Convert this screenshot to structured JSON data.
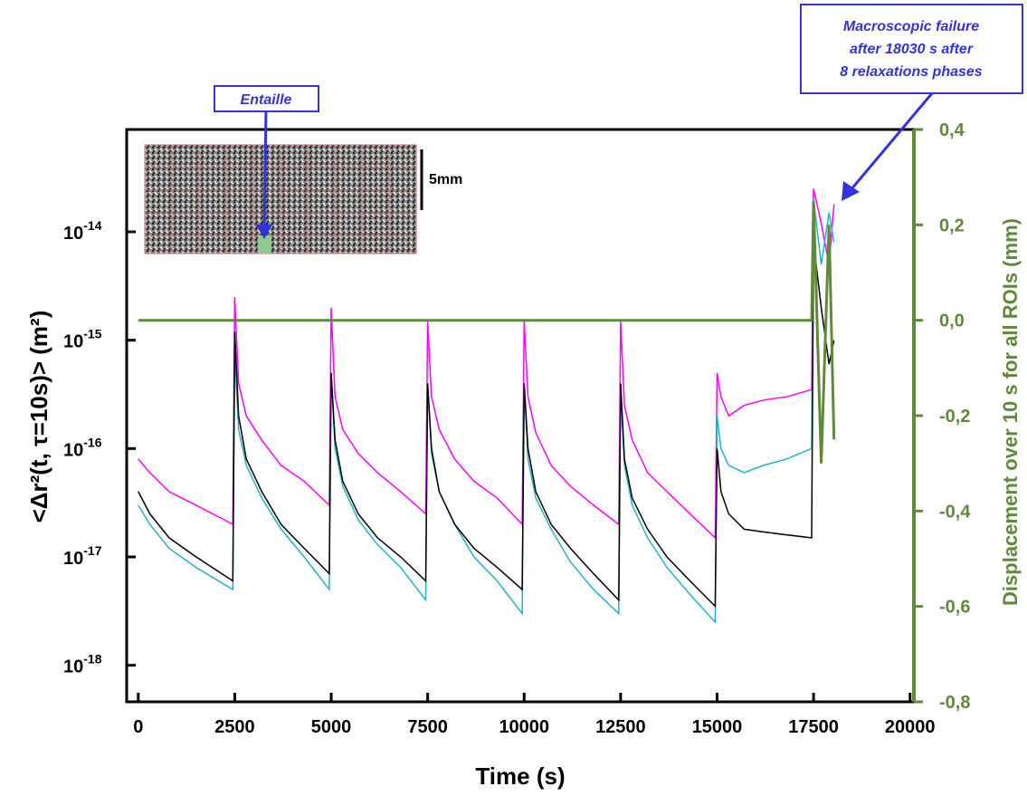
{
  "chart_data": {
    "type": "line",
    "x_label": "Time (s)",
    "y_label": "<Δr²(t,  τ=10s)> (m²)",
    "y2_label": "Displacement over 10 s for all ROIs (mm)",
    "annotations": [
      "Entaille",
      "5mm",
      "Macroscopic failure after 18030  s after 8 relaxations phases"
    ],
    "y_scale": "log",
    "xlim": [
      -300,
      20100
    ],
    "ylim": [
      4.6e-19,
      8.8e-14
    ],
    "y2lim": [
      -0.8,
      0.4
    ],
    "xticks": [
      0,
      2500,
      5000,
      7500,
      10000,
      12500,
      15000,
      17500,
      20000
    ],
    "yticks": [
      {
        "value": 1e-18,
        "label": "10",
        "exponent": "-18"
      },
      {
        "value": 1e-17,
        "label": "10",
        "exponent": "-17"
      },
      {
        "value": 1e-16,
        "label": "10",
        "exponent": "-16"
      },
      {
        "value": 1e-15,
        "label": "10",
        "exponent": "-15"
      },
      {
        "value": 1e-14,
        "label": "10",
        "exponent": "-14"
      }
    ],
    "y2ticks": [
      {
        "value": -0.8,
        "label": "-0,8"
      },
      {
        "value": -0.6,
        "label": "-0,6"
      },
      {
        "value": -0.4,
        "label": "-0,4"
      },
      {
        "value": -0.2,
        "label": "-0,2"
      },
      {
        "value": 0,
        "label": "0,0"
      },
      {
        "value": 0.2,
        "label": "0,2"
      },
      {
        "value": 0.4,
        "label": "0,4"
      }
    ],
    "y2_color": "#5f8a3a",
    "x": [
      0,
      300,
      800,
      1500,
      2450,
      2500,
      2600,
      2800,
      3200,
      3700,
      4300,
      4950,
      5000,
      5100,
      5300,
      5700,
      6200,
      6800,
      7450,
      7500,
      7600,
      7800,
      8200,
      8700,
      9300,
      9950,
      10000,
      10100,
      10300,
      10700,
      11200,
      11800,
      12450,
      12500,
      12600,
      12800,
      13200,
      13700,
      14300,
      14950,
      15000,
      15100,
      15300,
      15700,
      16200,
      16800,
      17450,
      17500,
      17700,
      17900,
      18030
    ],
    "series": [
      {
        "color": "#ff00ff",
        "values": [
          8e-17,
          6e-17,
          4e-17,
          3e-17,
          2e-17,
          2.5e-15,
          4e-16,
          2e-16,
          1.2e-16,
          7e-17,
          5e-17,
          3e-17,
          2e-15,
          3e-16,
          1.5e-16,
          9e-17,
          6e-17,
          4e-17,
          2.5e-17,
          1.5e-15,
          3e-16,
          1.5e-16,
          8e-17,
          5e-17,
          3.5e-17,
          2e-17,
          1.5e-15,
          3e-16,
          1.4e-16,
          7e-17,
          4.5e-17,
          3e-17,
          2e-17,
          1.5e-15,
          2.5e-16,
          1.2e-16,
          6e-17,
          4e-17,
          2.5e-17,
          1.5e-17,
          5e-16,
          3e-16,
          2e-16,
          2.5e-16,
          2.8e-16,
          3e-16,
          3.5e-16,
          2.5e-14,
          1.2e-14,
          5e-15,
          1.8e-14
        ]
      },
      {
        "color": "#20b2c8",
        "values": [
          3e-17,
          2e-17,
          1.2e-17,
          8e-18,
          5e-18,
          8e-16,
          1.5e-16,
          7e-17,
          3.5e-17,
          1.8e-17,
          1e-17,
          5e-18,
          5e-16,
          1e-16,
          4.5e-17,
          2.2e-17,
          1.3e-17,
          8e-18,
          4e-18,
          4e-16,
          9e-17,
          4e-17,
          2e-17,
          1e-17,
          6e-18,
          3e-18,
          4e-16,
          8e-17,
          3.5e-17,
          1.8e-17,
          9e-18,
          5e-18,
          3e-18,
          3.5e-16,
          7e-17,
          3e-17,
          1.5e-17,
          8e-18,
          4.5e-18,
          2.5e-18,
          2e-16,
          1e-16,
          7e-17,
          6e-17,
          7e-17,
          8e-17,
          1e-16,
          2e-14,
          5e-15,
          1.5e-14,
          8e-15
        ]
      },
      {
        "color": "#000000",
        "values": [
          4e-17,
          2.5e-17,
          1.5e-17,
          1e-17,
          6e-18,
          1.2e-15,
          2e-16,
          8e-17,
          4e-17,
          2e-17,
          1.2e-17,
          7e-18,
          5e-16,
          1.2e-16,
          5e-17,
          2.5e-17,
          1.5e-17,
          1e-17,
          6e-18,
          4e-16,
          1e-16,
          4e-17,
          2e-17,
          1.2e-17,
          8e-18,
          5e-18,
          4e-16,
          1e-16,
          4e-17,
          2e-17,
          1.2e-17,
          7e-18,
          4e-18,
          4e-16,
          8e-17,
          3.5e-17,
          1.8e-17,
          1e-17,
          6e-18,
          3.5e-18,
          1e-16,
          4e-17,
          2.5e-17,
          1.8e-17,
          1.7e-17,
          1.6e-17,
          1.5e-17,
          8e-15,
          2e-15,
          6e-16,
          1e-15
        ]
      },
      {
        "color": "#5f8a3a",
        "axis": "y2",
        "values": [
          0,
          0,
          0,
          0,
          0,
          0,
          0,
          0,
          0,
          0,
          0,
          0,
          0,
          0,
          0,
          0,
          0,
          0,
          0,
          0,
          0,
          0,
          0,
          0,
          0,
          0,
          0,
          0,
          0,
          0,
          0,
          0,
          0,
          0,
          0,
          0,
          0,
          0,
          0,
          0,
          0,
          0,
          0,
          0,
          0,
          0,
          0,
          0.25,
          -0.3,
          0.2,
          -0.25
        ]
      }
    ]
  }
}
